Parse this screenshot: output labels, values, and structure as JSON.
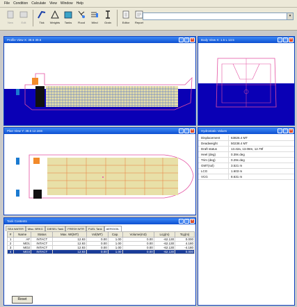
{
  "menu": [
    "File",
    "Condition",
    "Calculate",
    "View",
    "Window",
    "Help"
  ],
  "toolbar": [
    {
      "label": "New",
      "icon": "new-condition-icon",
      "disabled": true
    },
    {
      "label": "Edit",
      "icon": "edit-icon",
      "disabled": true
    },
    {
      "label": "Tick",
      "icon": "tick-icon",
      "disabled": false
    },
    {
      "label": "Weights",
      "icon": "weights-icon",
      "disabled": false
    },
    {
      "label": "Tanks",
      "icon": "tanks-icon",
      "disabled": false
    },
    {
      "label": "Flood",
      "icon": "flood-icon",
      "disabled": false
    },
    {
      "label": "Wind",
      "icon": "wind-icon",
      "disabled": false
    },
    {
      "label": "Grain",
      "icon": "grain-icon",
      "disabled": false
    },
    {
      "label": "Editor",
      "icon": "editor-icon",
      "disabled": false
    },
    {
      "label": "Report",
      "icon": "report-icon",
      "disabled": false
    }
  ],
  "windows": {
    "profile": {
      "title": "Profile View X: 38.6 39.6"
    },
    "body": {
      "title": "Body View X: 1.5 L 13.5"
    },
    "plan": {
      "title": "Plan View Y: 38.6 12.16m"
    },
    "hydro": {
      "title": "Hydrostatic Values"
    },
    "tank": {
      "title": "Tank Contents"
    }
  },
  "hydro": [
    {
      "k": "Displacement",
      "v": "63826.4 MT"
    },
    {
      "k": "Deadweight",
      "v": "50238.4 MT"
    },
    {
      "k": "Draft status",
      "v": "13.42a, 13.08m, 12.79f"
    },
    {
      "k": "Heel (deg)",
      "v": "0.39s deg"
    },
    {
      "k": "Trim (deg)",
      "v": "0.29s deg"
    },
    {
      "k": "GMT(sol)",
      "v": "3.521 m"
    },
    {
      "k": "LCG",
      "v": "1.603 m"
    },
    {
      "k": "VCG",
      "v": "8.631 m"
    }
  ],
  "tank": {
    "tabs": [
      "SEA WATER",
      "Misc. BRKG",
      "DIESEL Tank",
      "FRESH WTR",
      "FUEL Tank",
      "AERO/OIL"
    ],
    "active_tab": 5,
    "headers": [
      "#",
      "Name",
      "Status",
      "Max. Wt(MT)",
      "Vol(MT)",
      "Cap.",
      "Volume(m3)",
      "Lcg(m)",
      "Tcg(m)"
    ],
    "rows": [
      [
        "1",
        "AF",
        "INTACT",
        "12.93",
        "0.00",
        "1.00",
        "0.00",
        "-62.130",
        "0.000"
      ],
      [
        "2",
        "MO1",
        "INTACT",
        "12.93",
        "0.00",
        "1.00",
        "0.00",
        "-62.130",
        "4.180"
      ],
      [
        "3",
        "MO2",
        "INTACT",
        "12.93",
        "0.00",
        "1.00",
        "0.00",
        "-62.130",
        "-4.180"
      ],
      [
        "4",
        "MO3",
        "INTACT",
        "12.93",
        "0.00",
        "1.00",
        "0.00",
        "-62.130",
        "0.000"
      ]
    ],
    "selected_row": 3,
    "reset_label": "Reset"
  }
}
